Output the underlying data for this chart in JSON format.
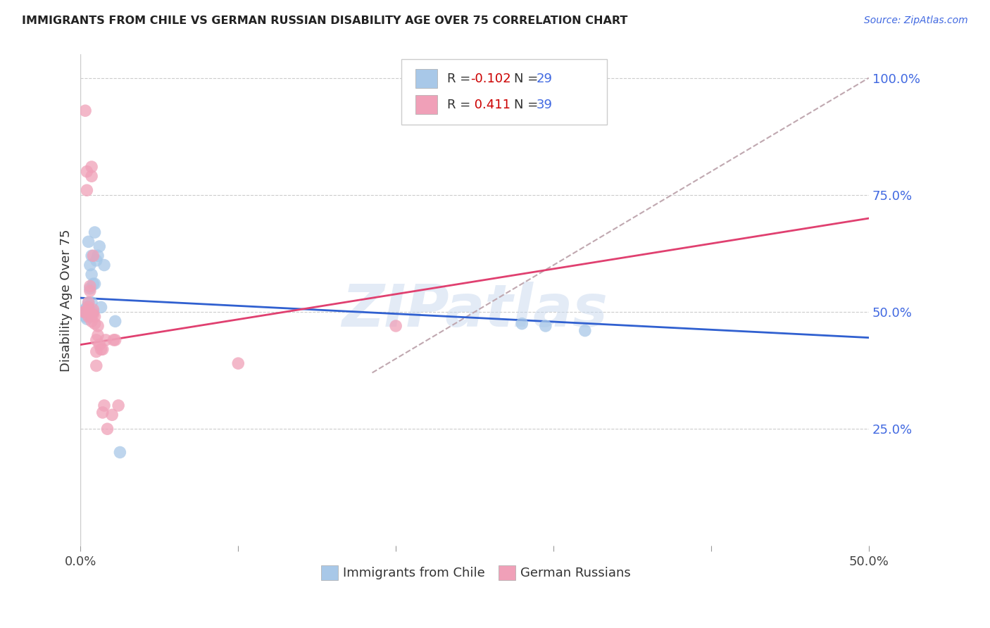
{
  "title": "IMMIGRANTS FROM CHILE VS GERMAN RUSSIAN DISABILITY AGE OVER 75 CORRELATION CHART",
  "source": "Source: ZipAtlas.com",
  "ylabel": "Disability Age Over 75",
  "xlim": [
    0.0,
    0.5
  ],
  "ylim": [
    0.0,
    1.05
  ],
  "xtick_positions": [
    0.0,
    0.1,
    0.2,
    0.3,
    0.4,
    0.5
  ],
  "xtick_labels": [
    "0.0%",
    "",
    "",
    "",
    "",
    "50.0%"
  ],
  "ytick_positions": [
    0.0,
    0.25,
    0.5,
    0.75,
    1.0
  ],
  "ytick_labels_right": [
    "",
    "25.0%",
    "50.0%",
    "75.0%",
    "100.0%"
  ],
  "legend_blue_r": "-0.102",
  "legend_blue_n": "29",
  "legend_pink_r": "0.411",
  "legend_pink_n": "39",
  "blue_color": "#a8c8e8",
  "pink_color": "#f0a0b8",
  "blue_line_color": "#3060d0",
  "pink_line_color": "#e04070",
  "diagonal_color": "#c0a8b0",
  "watermark_text": "ZIPatlas",
  "watermark_color": "#c8d8ee",
  "blue_points_x": [
    0.002,
    0.003,
    0.003,
    0.004,
    0.004,
    0.004,
    0.005,
    0.005,
    0.005,
    0.005,
    0.006,
    0.006,
    0.007,
    0.007,
    0.007,
    0.008,
    0.008,
    0.009,
    0.009,
    0.01,
    0.011,
    0.012,
    0.013,
    0.015,
    0.022,
    0.025,
    0.28,
    0.295,
    0.32
  ],
  "blue_points_y": [
    0.5,
    0.505,
    0.49,
    0.51,
    0.495,
    0.485,
    0.65,
    0.52,
    0.51,
    0.5,
    0.6,
    0.55,
    0.62,
    0.58,
    0.52,
    0.56,
    0.5,
    0.67,
    0.56,
    0.61,
    0.62,
    0.64,
    0.51,
    0.6,
    0.48,
    0.2,
    0.475,
    0.47,
    0.46
  ],
  "pink_points_x": [
    0.002,
    0.003,
    0.003,
    0.004,
    0.004,
    0.005,
    0.005,
    0.005,
    0.005,
    0.006,
    0.006,
    0.006,
    0.007,
    0.007,
    0.007,
    0.007,
    0.008,
    0.008,
    0.008,
    0.009,
    0.009,
    0.01,
    0.01,
    0.01,
    0.011,
    0.011,
    0.012,
    0.013,
    0.014,
    0.014,
    0.015,
    0.016,
    0.017,
    0.02,
    0.021,
    0.022,
    0.024,
    0.1,
    0.2
  ],
  "pink_points_y": [
    0.5,
    0.93,
    0.5,
    0.76,
    0.8,
    0.49,
    0.505,
    0.51,
    0.52,
    0.49,
    0.545,
    0.555,
    0.48,
    0.495,
    0.79,
    0.81,
    0.495,
    0.62,
    0.505,
    0.475,
    0.49,
    0.385,
    0.415,
    0.44,
    0.47,
    0.45,
    0.43,
    0.42,
    0.42,
    0.285,
    0.3,
    0.44,
    0.25,
    0.28,
    0.44,
    0.44,
    0.3,
    0.39,
    0.47
  ],
  "background_color": "#ffffff",
  "grid_color": "#cccccc",
  "blue_line_x": [
    0.0,
    0.5
  ],
  "blue_line_y": [
    0.53,
    0.445
  ],
  "pink_line_x": [
    0.0,
    0.5
  ],
  "pink_line_y": [
    0.43,
    0.7
  ],
  "diag_line_x": [
    0.185,
    0.5
  ],
  "diag_line_y": [
    0.37,
    1.0
  ]
}
